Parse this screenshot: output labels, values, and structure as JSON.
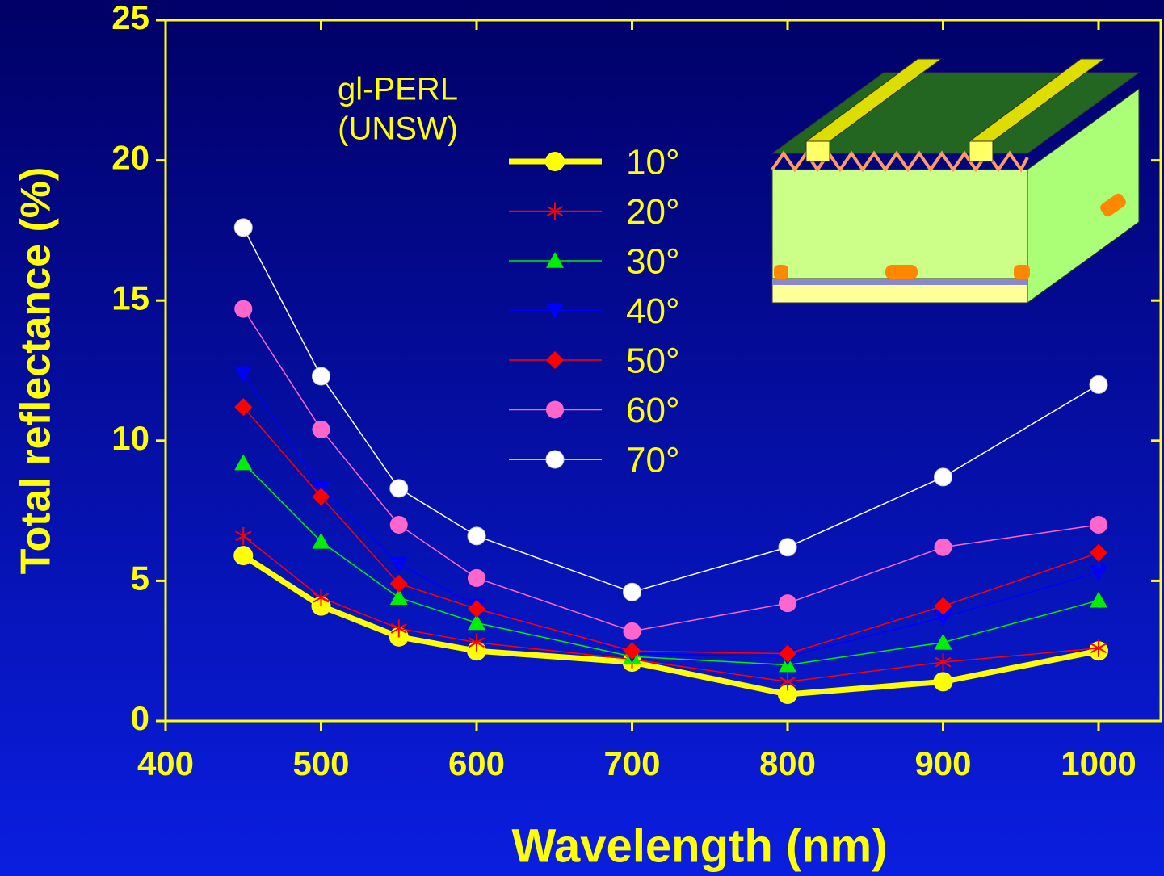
{
  "chart_data": {
    "type": "line",
    "xlabel": "Wavelength (nm)",
    "ylabel": "Total reflectance (%)",
    "annotation": [
      "gl-PERL",
      "(UNSW)"
    ],
    "x": [
      450,
      500,
      550,
      600,
      700,
      800,
      900,
      1000
    ],
    "xlim": [
      400,
      1040
    ],
    "xticks": [
      400,
      500,
      600,
      700,
      800,
      900,
      1000
    ],
    "ylim": [
      0,
      25
    ],
    "yticks": [
      0,
      5,
      10,
      15,
      20,
      25
    ],
    "series": [
      {
        "name": "10°",
        "color": "#ffff00",
        "marker": "circle",
        "values": [
          5.9,
          4.1,
          3.0,
          2.5,
          2.1,
          0.95,
          1.4,
          2.5
        ]
      },
      {
        "name": "20°",
        "color": "#ff0000",
        "marker": "asterisk",
        "values": [
          6.6,
          4.4,
          3.3,
          2.8,
          2.2,
          1.4,
          2.1,
          2.6
        ]
      },
      {
        "name": "30°",
        "color": "#00ee00",
        "marker": "triangle-up",
        "values": [
          9.2,
          6.4,
          4.4,
          3.5,
          2.3,
          2.0,
          2.8,
          4.3
        ]
      },
      {
        "name": "40°",
        "color": "#0000ff",
        "marker": "triangle-down",
        "values": [
          12.4,
          8.3,
          5.6,
          4.1,
          2.4,
          2.3,
          3.7,
          5.3
        ]
      },
      {
        "name": "50°",
        "color": "#ff0000",
        "marker": "diamond",
        "values": [
          11.2,
          8.0,
          4.9,
          4.0,
          2.5,
          2.4,
          4.1,
          6.0
        ]
      },
      {
        "name": "60°",
        "color": "#ff66cc",
        "marker": "circle",
        "values": [
          14.7,
          10.4,
          7.0,
          5.1,
          3.2,
          4.2,
          6.2,
          7.0
        ]
      },
      {
        "name": "70°",
        "color": "#ffffff",
        "marker": "circle",
        "values": [
          17.6,
          12.3,
          8.3,
          6.6,
          4.6,
          6.2,
          8.7,
          12.0
        ]
      }
    ]
  }
}
